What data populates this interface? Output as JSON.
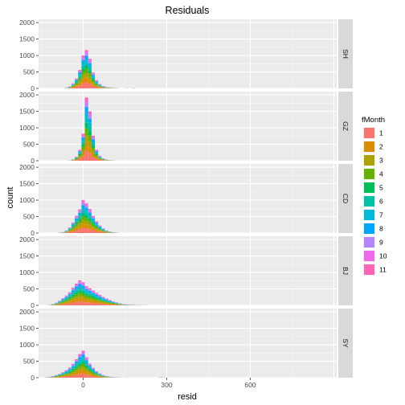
{
  "chart_data": {
    "type": "bar",
    "title": "Residuals",
    "xlabel": "resid",
    "ylabel": "count",
    "xlim": [
      -160,
      910
    ],
    "ylim": [
      0,
      2100
    ],
    "x_ticks": [
      0,
      300,
      600
    ],
    "y_ticks": [
      0,
      500,
      1000,
      1500,
      2000
    ],
    "grid": true,
    "stacked": true,
    "bin_width": 12,
    "legend": {
      "title": "fMonth",
      "position": "right",
      "entries": [
        {
          "label": "1",
          "color": "#F8766D"
        },
        {
          "label": "2",
          "color": "#DB8E00"
        },
        {
          "label": "3",
          "color": "#AEA200"
        },
        {
          "label": "4",
          "color": "#64B200"
        },
        {
          "label": "5",
          "color": "#00BD5C"
        },
        {
          "label": "6",
          "color": "#00C1A7"
        },
        {
          "label": "7",
          "color": "#00BADE"
        },
        {
          "label": "8",
          "color": "#00A6FF"
        },
        {
          "label": "9",
          "color": "#B385FF"
        },
        {
          "label": "10",
          "color": "#EF67EB"
        },
        {
          "label": "11",
          "color": "#FF63B6"
        }
      ]
    },
    "month_weights": [
      0.16,
      0.13,
      0.11,
      0.11,
      0.09,
      0.09,
      0.08,
      0.08,
      0.07,
      0.04,
      0.04
    ],
    "facets": [
      {
        "label": "SH",
        "bins": [
          {
            "x": -60,
            "count": 20
          },
          {
            "x": -48,
            "count": 60
          },
          {
            "x": -36,
            "count": 150
          },
          {
            "x": -24,
            "count": 300
          },
          {
            "x": -12,
            "count": 560
          },
          {
            "x": 0,
            "count": 1000
          },
          {
            "x": 12,
            "count": 1160
          },
          {
            "x": 24,
            "count": 900
          },
          {
            "x": 36,
            "count": 480
          },
          {
            "x": 48,
            "count": 250
          },
          {
            "x": 60,
            "count": 130
          },
          {
            "x": 72,
            "count": 70
          },
          {
            "x": 84,
            "count": 40
          },
          {
            "x": 96,
            "count": 25
          },
          {
            "x": 108,
            "count": 15
          },
          {
            "x": 120,
            "count": 10
          },
          {
            "x": 156,
            "count": 6
          },
          {
            "x": 180,
            "count": 8
          }
        ]
      },
      {
        "label": "GZ",
        "bins": [
          {
            "x": -48,
            "count": 10
          },
          {
            "x": -36,
            "count": 40
          },
          {
            "x": -24,
            "count": 120
          },
          {
            "x": -12,
            "count": 330
          },
          {
            "x": 0,
            "count": 820
          },
          {
            "x": 12,
            "count": 1920
          },
          {
            "x": 24,
            "count": 1500
          },
          {
            "x": 36,
            "count": 760
          },
          {
            "x": 48,
            "count": 330
          },
          {
            "x": 60,
            "count": 150
          },
          {
            "x": 72,
            "count": 70
          },
          {
            "x": 84,
            "count": 35
          },
          {
            "x": 96,
            "count": 15
          },
          {
            "x": 108,
            "count": 8
          }
        ]
      },
      {
        "label": "CD",
        "bins": [
          {
            "x": -84,
            "count": 10
          },
          {
            "x": -72,
            "count": 30
          },
          {
            "x": -60,
            "count": 80
          },
          {
            "x": -48,
            "count": 170
          },
          {
            "x": -36,
            "count": 320
          },
          {
            "x": -24,
            "count": 520
          },
          {
            "x": -12,
            "count": 720
          },
          {
            "x": 0,
            "count": 1000
          },
          {
            "x": 12,
            "count": 900
          },
          {
            "x": 24,
            "count": 730
          },
          {
            "x": 36,
            "count": 520
          },
          {
            "x": 48,
            "count": 360
          },
          {
            "x": 60,
            "count": 230
          },
          {
            "x": 72,
            "count": 140
          },
          {
            "x": 84,
            "count": 80
          },
          {
            "x": 96,
            "count": 45
          },
          {
            "x": 108,
            "count": 25
          },
          {
            "x": 120,
            "count": 12
          }
        ]
      },
      {
        "label": "BJ",
        "bins": [
          {
            "x": -120,
            "count": 10
          },
          {
            "x": -108,
            "count": 40
          },
          {
            "x": -96,
            "count": 80
          },
          {
            "x": -84,
            "count": 140
          },
          {
            "x": -72,
            "count": 220
          },
          {
            "x": -60,
            "count": 300
          },
          {
            "x": -48,
            "count": 400
          },
          {
            "x": -36,
            "count": 540
          },
          {
            "x": -24,
            "count": 660
          },
          {
            "x": -12,
            "count": 760
          },
          {
            "x": 0,
            "count": 700
          },
          {
            "x": 12,
            "count": 580
          },
          {
            "x": 24,
            "count": 520
          },
          {
            "x": 36,
            "count": 450
          },
          {
            "x": 48,
            "count": 380
          },
          {
            "x": 60,
            "count": 320
          },
          {
            "x": 72,
            "count": 260
          },
          {
            "x": 84,
            "count": 210
          },
          {
            "x": 96,
            "count": 160
          },
          {
            "x": 108,
            "count": 120
          },
          {
            "x": 120,
            "count": 90
          },
          {
            "x": 132,
            "count": 60
          },
          {
            "x": 144,
            "count": 40
          },
          {
            "x": 156,
            "count": 28
          },
          {
            "x": 168,
            "count": 20
          },
          {
            "x": 180,
            "count": 14
          },
          {
            "x": 192,
            "count": 10
          },
          {
            "x": 204,
            "count": 7
          },
          {
            "x": 216,
            "count": 5
          },
          {
            "x": 228,
            "count": 4
          }
        ]
      },
      {
        "label": "SY",
        "bins": [
          {
            "x": -132,
            "count": 10
          },
          {
            "x": -120,
            "count": 25
          },
          {
            "x": -108,
            "count": 50
          },
          {
            "x": -96,
            "count": 80
          },
          {
            "x": -84,
            "count": 120
          },
          {
            "x": -72,
            "count": 170
          },
          {
            "x": -60,
            "count": 230
          },
          {
            "x": -48,
            "count": 310
          },
          {
            "x": -36,
            "count": 420
          },
          {
            "x": -24,
            "count": 560
          },
          {
            "x": -12,
            "count": 720
          },
          {
            "x": 0,
            "count": 820
          },
          {
            "x": 12,
            "count": 620
          },
          {
            "x": 24,
            "count": 430
          },
          {
            "x": 36,
            "count": 300
          },
          {
            "x": 48,
            "count": 200
          },
          {
            "x": 60,
            "count": 130
          },
          {
            "x": 72,
            "count": 80
          },
          {
            "x": 84,
            "count": 50
          },
          {
            "x": 96,
            "count": 30
          },
          {
            "x": 108,
            "count": 18
          },
          {
            "x": 120,
            "count": 10
          },
          {
            "x": 132,
            "count": 6
          },
          {
            "x": 156,
            "count": 4
          },
          {
            "x": 276,
            "count": 12
          },
          {
            "x": 288,
            "count": 8
          }
        ]
      }
    ]
  }
}
